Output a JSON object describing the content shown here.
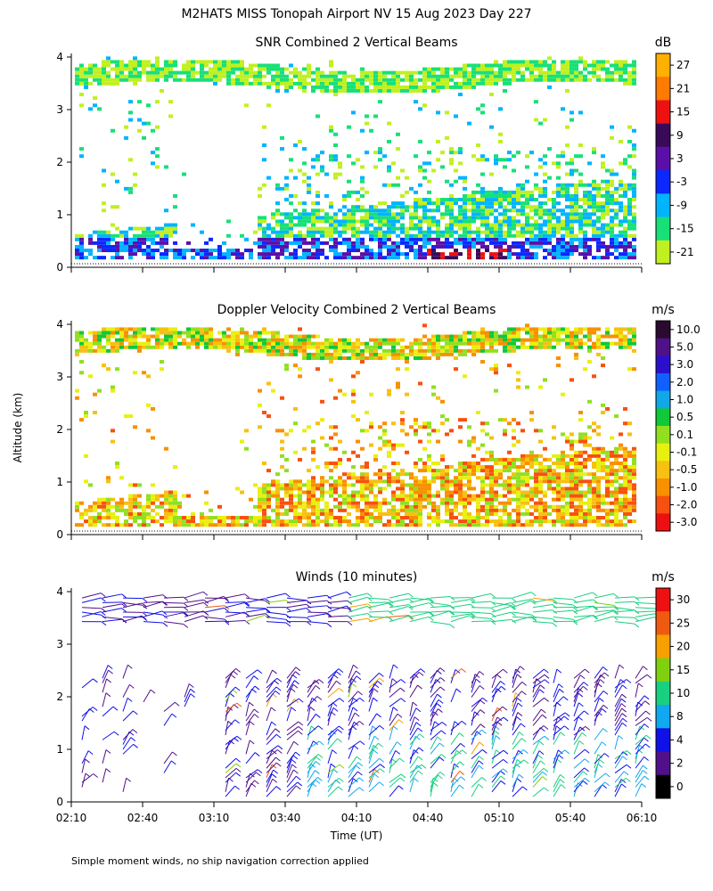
{
  "figure": {
    "title": "M2HATS MISS Tonopah Airport NV  15 Aug 2023 Day 227",
    "ylabel": "Altitude (km)",
    "xlabel": "Time (UT)",
    "footnote": "Simple moment winds, no ship navigation correction applied"
  },
  "chart_data": [
    {
      "type": "heatmap",
      "title": "SNR Combined 2 Vertical Beams",
      "x_ticks": [
        "02:10",
        "02:40",
        "03:10",
        "03:40",
        "04:10",
        "04:40",
        "05:10",
        "05:40",
        "06:10"
      ],
      "xlim": [
        "02:10",
        "06:10"
      ],
      "ylim": [
        0,
        4
      ],
      "y_ticks": [
        "0",
        "1",
        "2",
        "3",
        "4"
      ],
      "colorbar": {
        "unit": "dB",
        "labels": [
          "27",
          "21",
          "15",
          "9",
          "3",
          "-3",
          "-9",
          "-15",
          "-21"
        ],
        "colors": [
          "#ffb000",
          "#ff7a00",
          "#ee1111",
          "#3a0a5a",
          "#5a10a8",
          "#0a28ff",
          "#00b4ff",
          "#18e078",
          "#c0f020"
        ]
      },
      "features": [
        {
          "name": "upper layer",
          "altitude_km": [
            3.4,
            3.8
          ],
          "color": "#18e078"
        },
        {
          "name": "boundary layer",
          "altitude_km": [
            0.1,
            0.6
          ],
          "color": "#5a10a8"
        },
        {
          "name": "strong echo",
          "time": [
            "04:40",
            "05:20"
          ],
          "altitude_km": [
            0.1,
            0.35
          ],
          "color": "#3a0a5a"
        }
      ]
    },
    {
      "type": "heatmap",
      "title": "Doppler Velocity Combined 2 Vertical Beams",
      "x_ticks": [
        "02:10",
        "02:40",
        "03:10",
        "03:40",
        "04:10",
        "04:40",
        "05:10",
        "05:40",
        "06:10"
      ],
      "xlim": [
        "02:10",
        "06:10"
      ],
      "ylim": [
        0,
        4
      ],
      "y_ticks": [
        "0",
        "1",
        "2",
        "3",
        "4"
      ],
      "colorbar": {
        "unit": "m/s",
        "labels": [
          "10.0",
          "5.0",
          "3.0",
          "2.0",
          "1.0",
          "0.5",
          "0.1",
          "-0.1",
          "-0.5",
          "-1.0",
          "-2.0",
          "-3.0"
        ],
        "colors": [
          "#2a0a2e",
          "#50108a",
          "#2a10cc",
          "#1060ff",
          "#10a8e8",
          "#10c838",
          "#90e020",
          "#e8f010",
          "#f8c010",
          "#f89000",
          "#f85010",
          "#ee1010"
        ]
      }
    },
    {
      "type": "scatter",
      "title": "Winds (10 minutes)",
      "x_ticks": [
        "02:10",
        "02:40",
        "03:10",
        "03:40",
        "04:10",
        "04:40",
        "05:10",
        "05:40",
        "06:10"
      ],
      "xlim": [
        "02:10",
        "06:10"
      ],
      "ylim": [
        0,
        4
      ],
      "y_ticks": [
        "0",
        "1",
        "2",
        "3",
        "4"
      ],
      "colorbar": {
        "unit": "m/s",
        "labels": [
          "30",
          "25",
          "20",
          "15",
          "10",
          "8",
          "4",
          "2",
          "0"
        ],
        "colors": [
          "#ee1111",
          "#f05a10",
          "#f8a000",
          "#80d010",
          "#18d080",
          "#10a8f0",
          "#1010e8",
          "#50108a",
          "#000000"
        ]
      }
    }
  ]
}
